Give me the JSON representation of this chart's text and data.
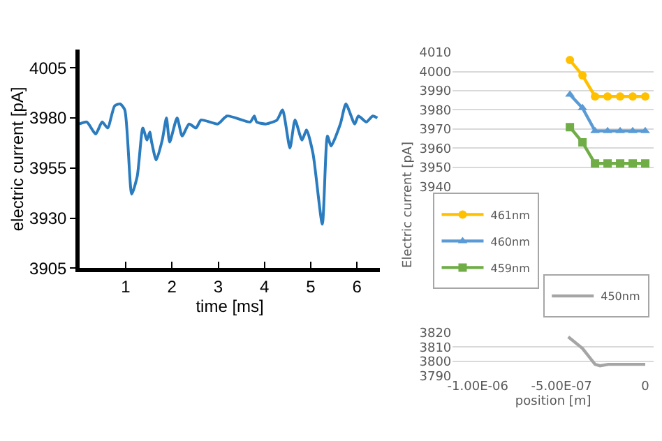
{
  "chart_data": [
    {
      "type": "line",
      "xlabel": "time [ms]",
      "ylabel": "electric current [pA]",
      "xlim": [
        0,
        6.5
      ],
      "xticks": [
        1,
        2,
        3,
        4,
        5,
        6
      ],
      "ylim": [
        3905,
        4014
      ],
      "yticks": [
        3905,
        3930,
        3955,
        3980,
        4005
      ],
      "grid": false,
      "legend": false,
      "marker": "none",
      "series": [
        {
          "color": "#2b7bbf",
          "x": [
            0,
            0.16,
            0.35,
            0.49,
            0.61,
            0.76,
            0.88,
            0.98,
            1.13,
            1.25,
            1.37,
            1.46,
            1.52,
            1.56,
            1.66,
            1.79,
            1.88,
            1.95,
            2.11,
            2.22,
            2.37,
            2.52,
            2.63,
            2.99,
            3.19,
            3.69,
            3.78,
            3.83,
            4.03,
            4.27,
            4.39,
            4.55,
            4.66,
            4.81,
            4.91,
            5.05,
            5.25,
            5.36,
            5.44,
            5.64,
            5.76,
            5.95,
            6.03,
            6.2,
            6.34,
            6.44
          ],
          "values": [
            3977,
            3978,
            3972,
            3978,
            3975,
            3986,
            3987,
            3984,
            3942,
            3951,
            3975,
            3969,
            3973,
            3968,
            3959,
            3969,
            3980,
            3968,
            3980,
            3971,
            3977,
            3975,
            3979,
            3977,
            3981,
            3978,
            3981,
            3978,
            3977,
            3979,
            3984,
            3965,
            3979,
            3969,
            3974,
            3962,
            3927,
            3971,
            3966,
            3977,
            3987,
            3977,
            3981,
            3978,
            3981,
            3980
          ]
        }
      ]
    },
    {
      "type": "line",
      "ylabel": "Electric current [pA]",
      "xlim": [
        -1.15e-06,
        5e-08
      ],
      "ylim": [
        3940,
        4010
      ],
      "yticks": [
        3940,
        3950,
        3960,
        3970,
        3980,
        3990,
        4000,
        4010
      ],
      "grid": "y",
      "tick_labels": "y",
      "legend": "bottom left",
      "x": [
        -4.5e-07,
        -3.75e-07,
        -3e-07,
        -2.25e-07,
        -1.5e-07,
        -7.5e-08,
        0
      ],
      "series": [
        {
          "name": "461nm",
          "color": "#ffc000",
          "marker": "circle",
          "values": [
            4006,
            3998,
            3987,
            3987,
            3987,
            3987,
            3987
          ]
        },
        {
          "name": "460nm",
          "color": "#5b9bd5",
          "marker": "triangle",
          "values": [
            3988,
            3981,
            3969,
            3969,
            3969,
            3969,
            3969
          ]
        },
        {
          "name": "459nm",
          "color": "#70ad47",
          "marker": "square",
          "values": [
            3971,
            3963,
            3952,
            3952,
            3952,
            3952,
            3952
          ]
        }
      ]
    },
    {
      "type": "line",
      "xlabel": "position [m]",
      "xlim": [
        -1.15e-06,
        5e-08
      ],
      "xticks": [
        {
          "value": -1e-06,
          "label": "-1.00E-06"
        },
        {
          "value": -5e-07,
          "label": "-5.00E-07"
        },
        0
      ],
      "ylim": [
        3790,
        3820
      ],
      "yticks": [
        3790,
        3800,
        3810,
        3820
      ],
      "grid": "y",
      "legend": "top right",
      "series": [
        {
          "name": "450nm",
          "color": "#a5a5a5",
          "marker": "none",
          "x": [
            -4.6e-07,
            -3.75e-07,
            -3e-07,
            -2.7e-07,
            -2.2e-07,
            0
          ],
          "values": [
            3817,
            3809,
            3798,
            3797,
            3798,
            3798
          ]
        }
      ]
    }
  ]
}
